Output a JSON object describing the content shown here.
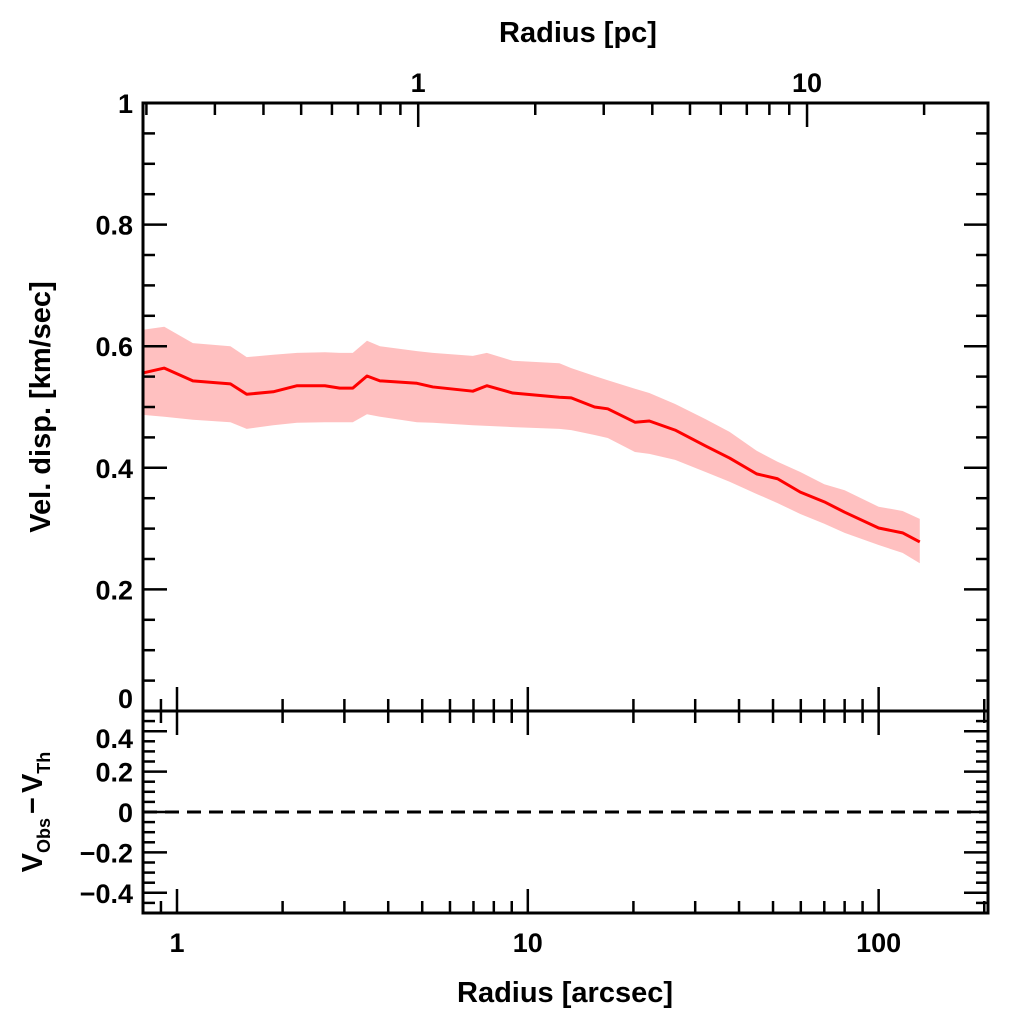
{
  "chart_data": [
    {
      "type": "area",
      "panel": "main",
      "xlabel": "Radius [arcsec]",
      "ylabel": "Vel. disp. [km/sec]",
      "top_xlabel": "Radius [pc]",
      "xscale": "log",
      "xlim": [
        0.8,
        205
      ],
      "top_xlim": [
        0.196,
        29.2
      ],
      "ylim": [
        0,
        1
      ],
      "yticks": [
        "0",
        "0.2",
        "0.4",
        "0.6",
        "0.8",
        "1"
      ],
      "top_xticks": [
        "1",
        "10"
      ],
      "grid": false,
      "colors": {
        "line": "#ff0000",
        "band": "#ffc0c0"
      },
      "series": [
        {
          "x": [
            0.8,
            0.92,
            1.11,
            1.42,
            1.58,
            1.88,
            2.2,
            2.64,
            2.91,
            3.17,
            3.48,
            3.79,
            4.83,
            5.36,
            6.97,
            7.64,
            9.06,
            12.3,
            13.3,
            15.5,
            16.9,
            20.2,
            22.2,
            26.3,
            32.1,
            37.6,
            44.9,
            51.5,
            59.8,
            70.0,
            80.0,
            100,
            117,
            131
          ],
          "y": [
            0.556,
            0.564,
            0.543,
            0.538,
            0.521,
            0.525,
            0.535,
            0.535,
            0.531,
            0.531,
            0.551,
            0.543,
            0.539,
            0.533,
            0.526,
            0.535,
            0.523,
            0.516,
            0.515,
            0.5,
            0.497,
            0.475,
            0.477,
            0.462,
            0.436,
            0.416,
            0.39,
            0.382,
            0.36,
            0.344,
            0.327,
            0.301,
            0.293,
            0.278
          ],
          "upper": [
            0.627,
            0.632,
            0.605,
            0.6,
            0.582,
            0.586,
            0.589,
            0.59,
            0.589,
            0.589,
            0.609,
            0.6,
            0.592,
            0.589,
            0.584,
            0.589,
            0.576,
            0.572,
            0.564,
            0.551,
            0.544,
            0.53,
            0.523,
            0.505,
            0.48,
            0.459,
            0.428,
            0.41,
            0.393,
            0.373,
            0.363,
            0.336,
            0.329,
            0.316
          ],
          "lower": [
            0.487,
            0.484,
            0.479,
            0.475,
            0.464,
            0.47,
            0.474,
            0.475,
            0.475,
            0.475,
            0.488,
            0.484,
            0.475,
            0.474,
            0.47,
            0.469,
            0.467,
            0.464,
            0.462,
            0.454,
            0.449,
            0.426,
            0.423,
            0.413,
            0.393,
            0.377,
            0.357,
            0.342,
            0.324,
            0.308,
            0.293,
            0.273,
            0.26,
            0.243
          ]
        }
      ]
    },
    {
      "type": "line",
      "panel": "residual",
      "xlabel": "Radius [arcsec]",
      "ylabel": "V_Obs − V_Th",
      "ylabel_parts": {
        "v1": "V",
        "s1": "Obs",
        "dash": "−",
        "v2": "V",
        "s2": "Th"
      },
      "xscale": "log",
      "xlim": [
        0.8,
        205
      ],
      "ylim": [
        -0.5,
        0.5
      ],
      "xticks": [
        "1",
        "10",
        "100"
      ],
      "yticks": [
        "0.4",
        "0.2",
        "0",
        "−0.2",
        "−0.4"
      ],
      "reference_line": {
        "y": 0,
        "style": "dashed"
      }
    }
  ]
}
